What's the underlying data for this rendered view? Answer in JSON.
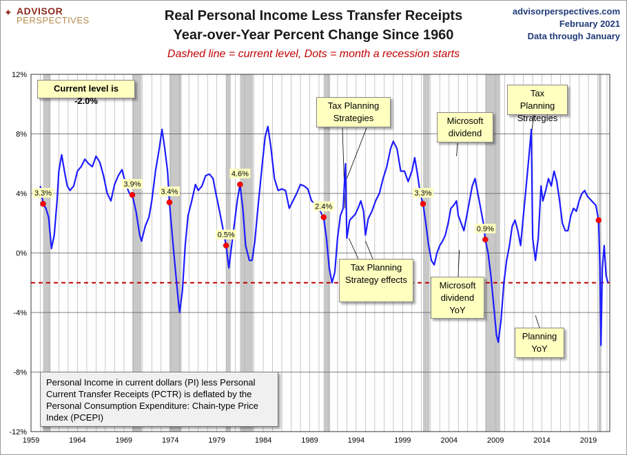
{
  "header": {
    "brand_line1": "ADVISOR",
    "brand_line2": "PERSPECTIVES",
    "title_line1": "Real Personal Income Less Transfer Receipts",
    "title_line2": "Year-over-Year Percent Change Since 1960",
    "subtitle": "Dashed line = current level, Dots = month a recession starts",
    "site": "advisorperspectives.com",
    "date": "February 2021",
    "data_through": "Data through January"
  },
  "colors": {
    "line": "#1c1cff",
    "dashed": "#c00000",
    "dot": "#ff0000",
    "recession": "#c8c8c8",
    "grid": "#b0b0b0"
  },
  "chart_data": {
    "type": "line",
    "title": "Real Personal Income Less Transfer Receipts Year-over-Year Percent Change Since 1960",
    "ylabel": "",
    "xlabel": "",
    "ylim": [
      -12,
      12
    ],
    "xlim": [
      1959.0,
      2021.3
    ],
    "yticks": [
      12,
      8,
      4,
      0,
      -4,
      -8,
      -12
    ],
    "ytick_labels": [
      "12%",
      "8%",
      "4%",
      "0%",
      "-4%",
      "-8%",
      "-12%"
    ],
    "xticks": [
      1959,
      1964,
      1969,
      1974,
      1979,
      1984,
      1989,
      1994,
      1999,
      2004,
      2009,
      2014,
      2019
    ],
    "current_level": -2.0,
    "recessions": [
      [
        1960.3,
        1961.1
      ],
      [
        1969.9,
        1970.9
      ],
      [
        1973.9,
        1975.2
      ],
      [
        1980.0,
        1980.5
      ],
      [
        1981.5,
        1982.9
      ],
      [
        1990.5,
        1991.2
      ],
      [
        2001.2,
        2001.9
      ],
      [
        2007.9,
        2009.5
      ],
      [
        2020.1,
        2020.4
      ]
    ],
    "series": [
      {
        "name": "YoY % change",
        "points": [
          [
            1960.0,
            4.5
          ],
          [
            1960.3,
            3.3
          ],
          [
            1960.6,
            3.0
          ],
          [
            1960.9,
            2.4
          ],
          [
            1961.2,
            0.3
          ],
          [
            1961.5,
            1.2
          ],
          [
            1961.8,
            3.5
          ],
          [
            1962.0,
            5.5
          ],
          [
            1962.3,
            6.6
          ],
          [
            1962.6,
            5.5
          ],
          [
            1962.9,
            4.5
          ],
          [
            1963.2,
            4.2
          ],
          [
            1963.6,
            4.5
          ],
          [
            1964.0,
            5.5
          ],
          [
            1964.4,
            5.8
          ],
          [
            1964.8,
            6.3
          ],
          [
            1965.2,
            6.0
          ],
          [
            1965.6,
            5.8
          ],
          [
            1966.0,
            6.5
          ],
          [
            1966.4,
            6.1
          ],
          [
            1966.8,
            5.2
          ],
          [
            1967.2,
            4.0
          ],
          [
            1967.6,
            3.5
          ],
          [
            1968.0,
            4.6
          ],
          [
            1968.4,
            5.2
          ],
          [
            1968.8,
            5.6
          ],
          [
            1969.2,
            4.6
          ],
          [
            1969.6,
            4.0
          ],
          [
            1969.9,
            3.9
          ],
          [
            1970.3,
            2.8
          ],
          [
            1970.7,
            1.2
          ],
          [
            1970.9,
            0.8
          ],
          [
            1971.3,
            1.8
          ],
          [
            1971.7,
            2.4
          ],
          [
            1972.0,
            3.5
          ],
          [
            1972.4,
            5.5
          ],
          [
            1972.8,
            7.0
          ],
          [
            1973.1,
            8.3
          ],
          [
            1973.4,
            7.0
          ],
          [
            1973.7,
            5.5
          ],
          [
            1973.9,
            3.4
          ],
          [
            1974.3,
            0.5
          ],
          [
            1974.6,
            -1.5
          ],
          [
            1974.9,
            -3.5
          ],
          [
            1975.0,
            -4.0
          ],
          [
            1975.3,
            -2.5
          ],
          [
            1975.6,
            0.5
          ],
          [
            1975.9,
            2.5
          ],
          [
            1976.3,
            3.5
          ],
          [
            1976.7,
            4.6
          ],
          [
            1977.0,
            4.2
          ],
          [
            1977.4,
            4.5
          ],
          [
            1977.8,
            5.2
          ],
          [
            1978.2,
            5.3
          ],
          [
            1978.6,
            5.0
          ],
          [
            1978.9,
            4.0
          ],
          [
            1979.3,
            2.8
          ],
          [
            1979.7,
            1.5
          ],
          [
            1980.0,
            0.5
          ],
          [
            1980.3,
            -1.0
          ],
          [
            1980.6,
            0.5
          ],
          [
            1980.9,
            2.0
          ],
          [
            1981.2,
            3.5
          ],
          [
            1981.5,
            4.6
          ],
          [
            1981.8,
            3.0
          ],
          [
            1982.1,
            0.5
          ],
          [
            1982.5,
            -0.5
          ],
          [
            1982.8,
            -0.5
          ],
          [
            1983.1,
            0.8
          ],
          [
            1983.5,
            3.5
          ],
          [
            1983.9,
            6.0
          ],
          [
            1984.2,
            7.8
          ],
          [
            1984.5,
            8.5
          ],
          [
            1984.8,
            7.2
          ],
          [
            1985.2,
            5.0
          ],
          [
            1985.6,
            4.2
          ],
          [
            1986.0,
            4.3
          ],
          [
            1986.4,
            4.2
          ],
          [
            1986.8,
            3.0
          ],
          [
            1987.2,
            3.5
          ],
          [
            1987.6,
            4.0
          ],
          [
            1988.0,
            4.6
          ],
          [
            1988.4,
            4.5
          ],
          [
            1988.8,
            4.3
          ],
          [
            1989.2,
            3.5
          ],
          [
            1989.6,
            3.3
          ],
          [
            1990.0,
            3.0
          ],
          [
            1990.3,
            2.6
          ],
          [
            1990.5,
            2.4
          ],
          [
            1990.8,
            1.0
          ],
          [
            1991.1,
            -1.0
          ],
          [
            1991.4,
            -2.0
          ],
          [
            1991.7,
            -1.3
          ],
          [
            1992.0,
            1.0
          ],
          [
            1992.3,
            2.5
          ],
          [
            1992.6,
            3.0
          ],
          [
            1992.85,
            6.0
          ],
          [
            1993.0,
            1.0
          ],
          [
            1993.3,
            2.2
          ],
          [
            1993.6,
            2.4
          ],
          [
            1993.9,
            2.6
          ],
          [
            1994.2,
            3.0
          ],
          [
            1994.5,
            3.5
          ],
          [
            1994.8,
            2.8
          ],
          [
            1995.0,
            1.2
          ],
          [
            1995.3,
            2.3
          ],
          [
            1995.7,
            2.8
          ],
          [
            1996.1,
            3.5
          ],
          [
            1996.5,
            4.0
          ],
          [
            1996.9,
            5.0
          ],
          [
            1997.3,
            5.8
          ],
          [
            1997.7,
            7.0
          ],
          [
            1998.0,
            7.5
          ],
          [
            1998.4,
            7.0
          ],
          [
            1998.8,
            5.5
          ],
          [
            1999.2,
            5.5
          ],
          [
            1999.6,
            4.8
          ],
          [
            2000.0,
            5.5
          ],
          [
            2000.3,
            6.4
          ],
          [
            2000.6,
            5.3
          ],
          [
            2000.9,
            4.0
          ],
          [
            2001.2,
            3.3
          ],
          [
            2001.5,
            2.0
          ],
          [
            2001.8,
            0.5
          ],
          [
            2002.1,
            -0.5
          ],
          [
            2002.4,
            -0.8
          ],
          [
            2002.7,
            0.0
          ],
          [
            2003.0,
            0.5
          ],
          [
            2003.3,
            0.8
          ],
          [
            2003.6,
            1.2
          ],
          [
            2003.9,
            2.0
          ],
          [
            2004.2,
            3.0
          ],
          [
            2004.5,
            3.2
          ],
          [
            2004.8,
            3.5
          ],
          [
            2005.0,
            2.5
          ],
          [
            2005.3,
            2.0
          ],
          [
            2005.6,
            1.5
          ],
          [
            2005.9,
            2.5
          ],
          [
            2006.2,
            3.5
          ],
          [
            2006.5,
            4.5
          ],
          [
            2006.8,
            5.0
          ],
          [
            2007.1,
            4.0
          ],
          [
            2007.4,
            3.0
          ],
          [
            2007.7,
            2.0
          ],
          [
            2007.9,
            0.9
          ],
          [
            2008.2,
            0.0
          ],
          [
            2008.5,
            -1.5
          ],
          [
            2008.8,
            -3.5
          ],
          [
            2009.1,
            -5.5
          ],
          [
            2009.3,
            -6.0
          ],
          [
            2009.6,
            -4.5
          ],
          [
            2009.9,
            -2.0
          ],
          [
            2010.2,
            -0.5
          ],
          [
            2010.5,
            0.5
          ],
          [
            2010.8,
            1.8
          ],
          [
            2011.1,
            2.2
          ],
          [
            2011.4,
            1.5
          ],
          [
            2011.7,
            0.5
          ],
          [
            2012.0,
            2.5
          ],
          [
            2012.3,
            4.5
          ],
          [
            2012.6,
            6.5
          ],
          [
            2012.85,
            8.3
          ],
          [
            2013.0,
            1.0
          ],
          [
            2013.3,
            -0.5
          ],
          [
            2013.6,
            1.0
          ],
          [
            2013.9,
            4.5
          ],
          [
            2014.1,
            3.5
          ],
          [
            2014.4,
            4.2
          ],
          [
            2014.7,
            5.0
          ],
          [
            2015.0,
            4.5
          ],
          [
            2015.3,
            5.5
          ],
          [
            2015.6,
            4.8
          ],
          [
            2015.9,
            3.5
          ],
          [
            2016.2,
            2.0
          ],
          [
            2016.5,
            1.5
          ],
          [
            2016.8,
            1.5
          ],
          [
            2017.1,
            2.5
          ],
          [
            2017.4,
            3.0
          ],
          [
            2017.7,
            2.8
          ],
          [
            2018.0,
            3.5
          ],
          [
            2018.3,
            4.0
          ],
          [
            2018.6,
            4.2
          ],
          [
            2018.9,
            3.8
          ],
          [
            2019.2,
            3.6
          ],
          [
            2019.5,
            3.4
          ],
          [
            2019.8,
            3.2
          ],
          [
            2020.1,
            2.2
          ],
          [
            2020.25,
            -1.0
          ],
          [
            2020.35,
            -6.2
          ],
          [
            2020.5,
            -1.0
          ],
          [
            2020.7,
            0.5
          ],
          [
            2020.9,
            -1.5
          ],
          [
            2021.1,
            -2.0
          ]
        ]
      }
    ],
    "recession_dots": [
      {
        "x": 1960.3,
        "y": 3.3,
        "label": "3.3%"
      },
      {
        "x": 1969.9,
        "y": 3.9,
        "label": "3.9%"
      },
      {
        "x": 1973.9,
        "y": 3.4,
        "label": "3.4%"
      },
      {
        "x": 1980.0,
        "y": 0.5,
        "label": "0.5%"
      },
      {
        "x": 1981.5,
        "y": 4.6,
        "label": "4.6%"
      },
      {
        "x": 1990.5,
        "y": 2.4,
        "label": "2.4%"
      },
      {
        "x": 2001.2,
        "y": 3.3,
        "label": "3.3%"
      },
      {
        "x": 2007.9,
        "y": 0.9,
        "label": "0.9%"
      },
      {
        "x": 2020.1,
        "y": 2.2,
        "label": ""
      }
    ]
  },
  "annotations": {
    "current_level": "Current level is -2.0%",
    "tax_planning_1": "Tax Planning Strategies",
    "tax_planning_effects": "Tax Planning Strategy effects",
    "microsoft_dividend": "Microsoft dividend",
    "microsoft_dividend_yoy": "Microsoft dividend YoY",
    "tax_planning_2": "Tax Planning Strategies",
    "planning_yoy": "Planning YoY",
    "note": "Personal Income in current dollars (PI) less Personal Current Transfer Receipts (PCTR) is deflated by the Personal Consumption Expenditure: Chain-type Price Index (PCEPI)"
  }
}
